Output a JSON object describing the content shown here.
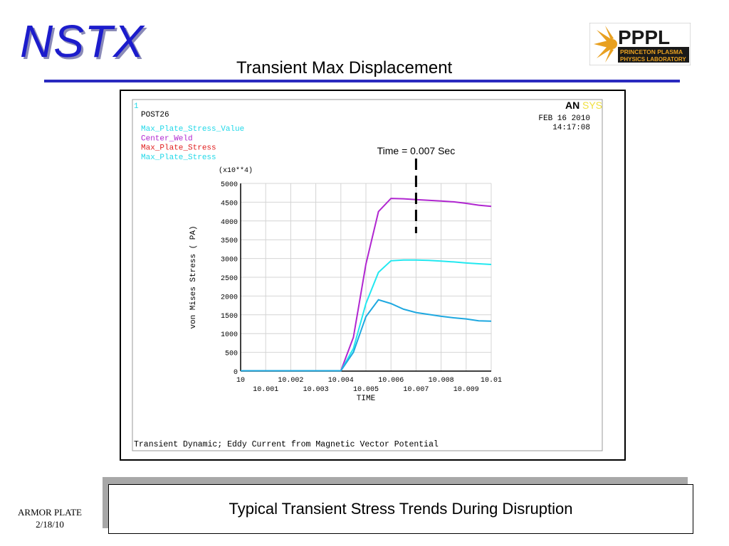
{
  "slide": {
    "logo_text": "NSTX",
    "title": "Transient Max Displacement",
    "caption": "Typical Transient Stress Trends During Disruption",
    "footer_line1": "ARMOR  PLATE",
    "footer_line2": "2/18/10"
  },
  "pppl_logo": {
    "name": "PPPL",
    "line1": "PRINCETON PLASMA",
    "line2": "PHYSICS LABORATORY",
    "colors": {
      "dark": "#1a1a1a",
      "accent": "#e8a020"
    }
  },
  "ansys_plot": {
    "window_number": "1",
    "processor": "POST26",
    "date": "FEB 16 2010",
    "time": "14:17:08",
    "logo_an": "AN",
    "logo_sys": "SYS",
    "subtitle": "Transient Dynamic; Eddy Current from Magnetic Vector Potential",
    "annotation": "Time = 0.007 Sec",
    "legend": [
      {
        "label": "Max_Plate_Stress_Value",
        "color": "#22d8e8"
      },
      {
        "label": "Center_Weld",
        "color": "#b026d0"
      },
      {
        "label": "Max_Plate_Stress",
        "color": "#e02020"
      },
      {
        "label": "Max_Plate_Stress",
        "color": "#22d8e8"
      }
    ]
  },
  "chart_data": {
    "type": "line",
    "xlabel": "TIME",
    "ylabel": "von Mises Stress ( PA)",
    "y_multiplier": "(x10**4)",
    "xlim": [
      10,
      10.01
    ],
    "ylim": [
      0,
      5000
    ],
    "x_ticks_upper": [
      "10",
      "10.002",
      "10.004",
      "10.006",
      "10.008",
      "10.01"
    ],
    "x_ticks_lower": [
      "10.001",
      "10.003",
      "10.005",
      "10.007",
      "10.009"
    ],
    "x_tick_values_upper": [
      10,
      10.002,
      10.004,
      10.006,
      10.008,
      10.01
    ],
    "x_tick_values_lower": [
      10.001,
      10.003,
      10.005,
      10.007,
      10.009
    ],
    "y_ticks": [
      "0",
      "500",
      "1000",
      "1500",
      "2000",
      "2500",
      "3000",
      "3500",
      "4000",
      "4500",
      "5000"
    ],
    "y_tick_values": [
      0,
      500,
      1000,
      1500,
      2000,
      2500,
      3000,
      3500,
      4000,
      4500,
      5000
    ],
    "grid": true,
    "annotation_x": 10.007,
    "series": [
      {
        "name": "Center_Weld",
        "color": "#b026d0",
        "x": [
          10,
          10.001,
          10.002,
          10.003,
          10.004,
          10.0045,
          10.005,
          10.0055,
          10.006,
          10.0065,
          10.007,
          10.0075,
          10.008,
          10.0085,
          10.009,
          10.0095,
          10.01
        ],
        "y": [
          10,
          10,
          10,
          10,
          10,
          900,
          2850,
          4250,
          4600,
          4590,
          4570,
          4550,
          4530,
          4510,
          4470,
          4420,
          4390
        ]
      },
      {
        "name": "Max_Plate_Stress",
        "color": "#22e8f0",
        "x": [
          10,
          10.001,
          10.002,
          10.003,
          10.004,
          10.0045,
          10.005,
          10.0055,
          10.006,
          10.0065,
          10.007,
          10.0075,
          10.008,
          10.0085,
          10.009,
          10.0095,
          10.01
        ],
        "y": [
          10,
          10,
          10,
          10,
          10,
          600,
          1800,
          2630,
          2940,
          2960,
          2960,
          2950,
          2930,
          2910,
          2880,
          2860,
          2840
        ]
      },
      {
        "name": "Max_Plate_Stress_Value",
        "color": "#1ea8e0",
        "x": [
          10,
          10.001,
          10.002,
          10.003,
          10.004,
          10.0045,
          10.005,
          10.0055,
          10.006,
          10.0065,
          10.007,
          10.0075,
          10.008,
          10.0085,
          10.009,
          10.0095,
          10.01
        ],
        "y": [
          10,
          10,
          10,
          10,
          10,
          500,
          1450,
          1900,
          1800,
          1650,
          1560,
          1510,
          1460,
          1420,
          1390,
          1340,
          1330
        ]
      }
    ]
  }
}
